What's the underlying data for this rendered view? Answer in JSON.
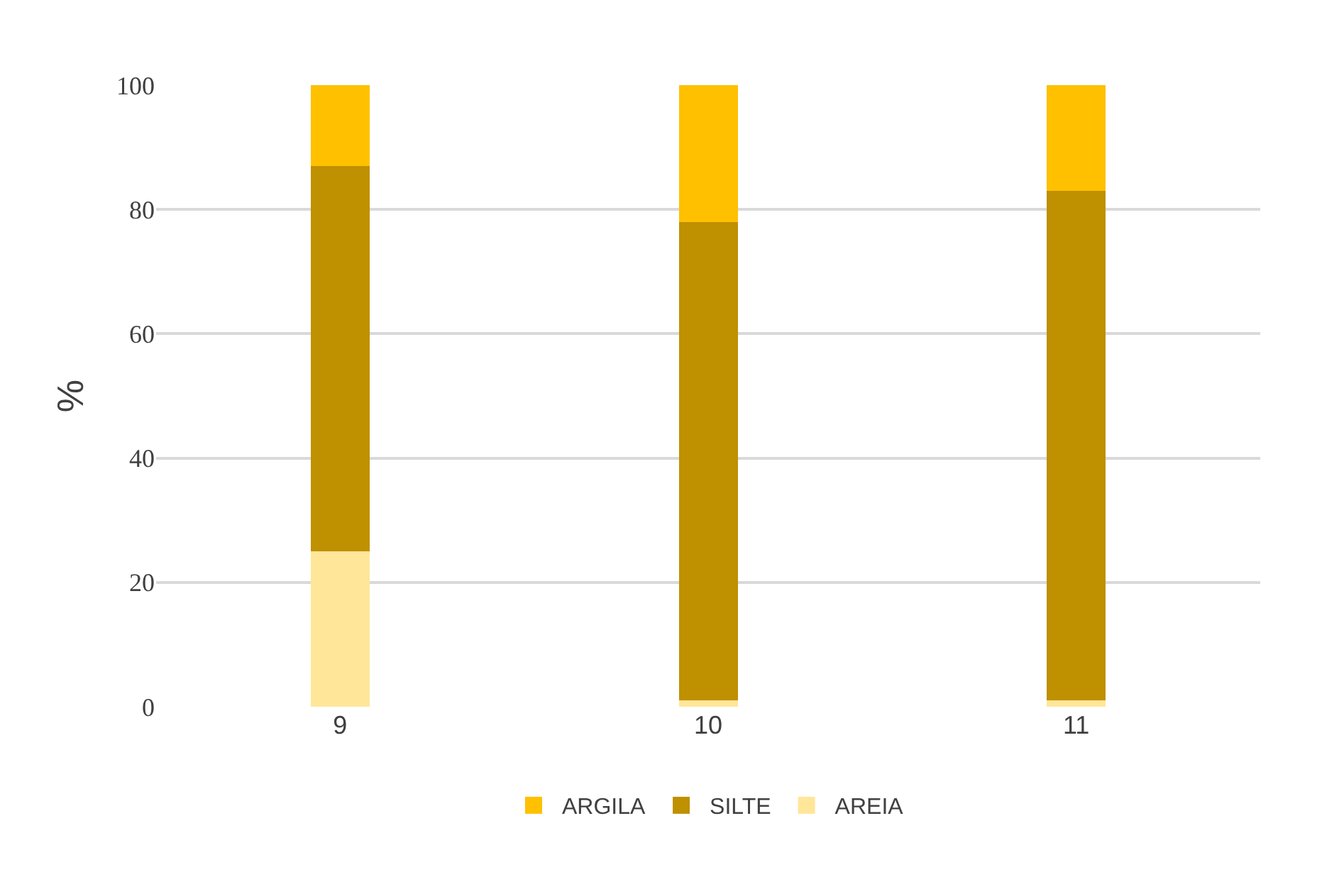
{
  "chart_data": {
    "type": "bar",
    "stacked": true,
    "ylabel": "%",
    "categories": [
      "9",
      "10",
      "11"
    ],
    "series": [
      {
        "name": "AREIA",
        "color": "#ffe699",
        "values": [
          25,
          1,
          1
        ]
      },
      {
        "name": "SILTE",
        "color": "#bf9000",
        "values": [
          62,
          77,
          82
        ]
      },
      {
        "name": "ARGILA",
        "color": "#ffc000",
        "values": [
          13,
          22,
          17
        ]
      }
    ],
    "ylim": [
      0,
      100
    ],
    "yticks": [
      0,
      20,
      40,
      60,
      80,
      100
    ],
    "grid": "y",
    "legend": "bottom"
  }
}
